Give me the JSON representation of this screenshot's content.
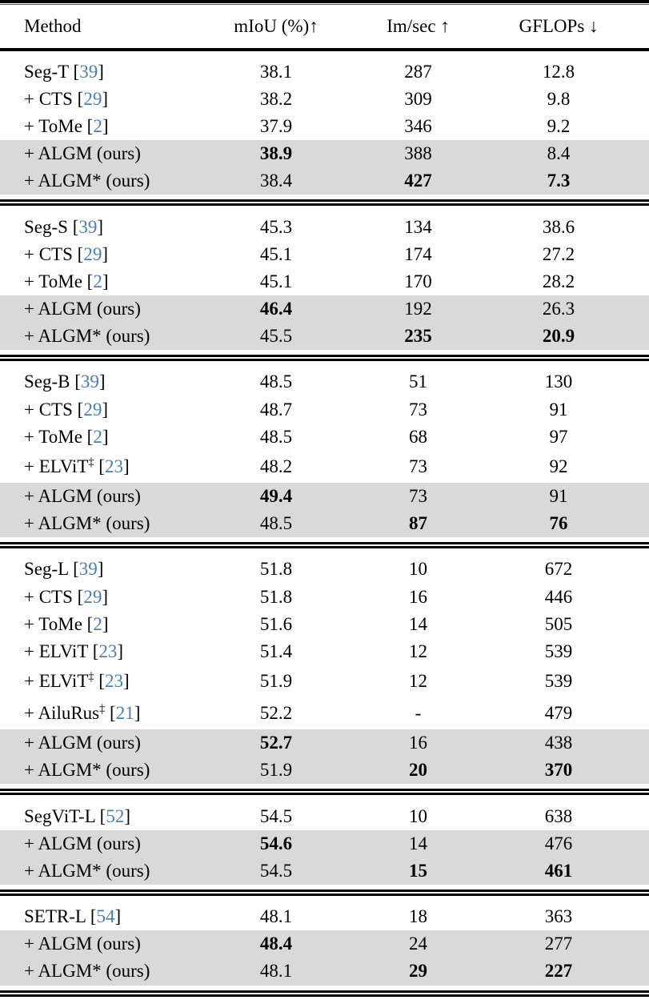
{
  "colors": {
    "citation_blue": "#4a7eb5",
    "row_shade": "#d9d9d9",
    "rule_black": "#000000"
  },
  "table": {
    "header": {
      "method": "Method",
      "miou": "mIoU (%)↑",
      "imsec": "Im/sec ↑",
      "gflops": "GFLOPs ↓"
    },
    "sections": [
      {
        "rows": [
          {
            "method": "Seg-T",
            "sup": "",
            "cite": "39",
            "shaded": false,
            "tall": false,
            "cells": [
              {
                "t": "38.1",
                "b": false
              },
              {
                "t": "287",
                "b": false
              },
              {
                "t": "12.8",
                "b": false
              }
            ]
          },
          {
            "method": "+ CTS",
            "sup": "",
            "cite": "29",
            "shaded": false,
            "tall": false,
            "cells": [
              {
                "t": "38.2",
                "b": false
              },
              {
                "t": "309",
                "b": false
              },
              {
                "t": "9.8",
                "b": false
              }
            ]
          },
          {
            "method": "+ ToMe",
            "sup": "",
            "cite": "2",
            "shaded": false,
            "tall": false,
            "cells": [
              {
                "t": "37.9",
                "b": false
              },
              {
                "t": "346",
                "b": false
              },
              {
                "t": "9.2",
                "b": false
              }
            ]
          },
          {
            "method": "+ ALGM (ours)",
            "sup": "",
            "cite": "",
            "shaded": true,
            "tall": false,
            "cells": [
              {
                "t": "38.9",
                "b": true
              },
              {
                "t": "388",
                "b": false
              },
              {
                "t": "8.4",
                "b": false
              }
            ]
          },
          {
            "method": "+ ALGM* (ours)",
            "sup": "",
            "cite": "",
            "shaded": true,
            "tall": false,
            "cells": [
              {
                "t": "38.4",
                "b": false
              },
              {
                "t": "427",
                "b": true
              },
              {
                "t": "7.3",
                "b": true
              }
            ]
          }
        ]
      },
      {
        "rows": [
          {
            "method": "Seg-S",
            "sup": "",
            "cite": "39",
            "shaded": false,
            "tall": false,
            "cells": [
              {
                "t": "45.3",
                "b": false
              },
              {
                "t": "134",
                "b": false
              },
              {
                "t": "38.6",
                "b": false
              }
            ]
          },
          {
            "method": "+ CTS",
            "sup": "",
            "cite": "29",
            "shaded": false,
            "tall": false,
            "cells": [
              {
                "t": "45.1",
                "b": false
              },
              {
                "t": "174",
                "b": false
              },
              {
                "t": "27.2",
                "b": false
              }
            ]
          },
          {
            "method": "+ ToMe",
            "sup": "",
            "cite": "2",
            "shaded": false,
            "tall": false,
            "cells": [
              {
                "t": "45.1",
                "b": false
              },
              {
                "t": "170",
                "b": false
              },
              {
                "t": "28.2",
                "b": false
              }
            ]
          },
          {
            "method": "+ ALGM (ours)",
            "sup": "",
            "cite": "",
            "shaded": true,
            "tall": false,
            "cells": [
              {
                "t": "46.4",
                "b": true
              },
              {
                "t": "192",
                "b": false
              },
              {
                "t": "26.3",
                "b": false
              }
            ]
          },
          {
            "method": "+ ALGM* (ours)",
            "sup": "",
            "cite": "",
            "shaded": true,
            "tall": false,
            "cells": [
              {
                "t": "45.5",
                "b": false
              },
              {
                "t": "235",
                "b": true
              },
              {
                "t": "20.9",
                "b": true
              }
            ]
          }
        ]
      },
      {
        "rows": [
          {
            "method": "Seg-B",
            "sup": "",
            "cite": "39",
            "shaded": false,
            "tall": false,
            "cells": [
              {
                "t": "48.5",
                "b": false
              },
              {
                "t": "51",
                "b": false
              },
              {
                "t": "130",
                "b": false
              }
            ]
          },
          {
            "method": "+ CTS",
            "sup": "",
            "cite": "29",
            "shaded": false,
            "tall": false,
            "cells": [
              {
                "t": "48.7",
                "b": false
              },
              {
                "t": "73",
                "b": false
              },
              {
                "t": "91",
                "b": false
              }
            ]
          },
          {
            "method": "+ ToMe",
            "sup": "",
            "cite": "2",
            "shaded": false,
            "tall": false,
            "cells": [
              {
                "t": "48.5",
                "b": false
              },
              {
                "t": "68",
                "b": false
              },
              {
                "t": "97",
                "b": false
              }
            ]
          },
          {
            "method": "+ ELViT",
            "sup": "‡",
            "cite": "23",
            "shaded": false,
            "tall": true,
            "cells": [
              {
                "t": "48.2",
                "b": false
              },
              {
                "t": "73",
                "b": false
              },
              {
                "t": "92",
                "b": false
              }
            ]
          },
          {
            "method": "+ ALGM (ours)",
            "sup": "",
            "cite": "",
            "shaded": true,
            "tall": false,
            "cells": [
              {
                "t": "49.4",
                "b": true
              },
              {
                "t": "73",
                "b": false
              },
              {
                "t": "91",
                "b": false
              }
            ]
          },
          {
            "method": "+ ALGM* (ours)",
            "sup": "",
            "cite": "",
            "shaded": true,
            "tall": false,
            "cells": [
              {
                "t": "48.5",
                "b": false
              },
              {
                "t": "87",
                "b": true
              },
              {
                "t": "76",
                "b": true
              }
            ]
          }
        ]
      },
      {
        "rows": [
          {
            "method": "Seg-L",
            "sup": "",
            "cite": "39",
            "shaded": false,
            "tall": false,
            "cells": [
              {
                "t": "51.8",
                "b": false
              },
              {
                "t": "10",
                "b": false
              },
              {
                "t": "672",
                "b": false
              }
            ]
          },
          {
            "method": "+ CTS",
            "sup": "",
            "cite": "29",
            "shaded": false,
            "tall": false,
            "cells": [
              {
                "t": "51.8",
                "b": false
              },
              {
                "t": "16",
                "b": false
              },
              {
                "t": "446",
                "b": false
              }
            ]
          },
          {
            "method": "+ ToMe",
            "sup": "",
            "cite": "2",
            "shaded": false,
            "tall": false,
            "cells": [
              {
                "t": "51.6",
                "b": false
              },
              {
                "t": "14",
                "b": false
              },
              {
                "t": "505",
                "b": false
              }
            ]
          },
          {
            "method": "+ ELViT",
            "sup": "",
            "cite": "23",
            "shaded": false,
            "tall": false,
            "cells": [
              {
                "t": "51.4",
                "b": false
              },
              {
                "t": "12",
                "b": false
              },
              {
                "t": "539",
                "b": false
              }
            ]
          },
          {
            "method": "+ ELViT",
            "sup": "‡",
            "cite": "23",
            "shaded": false,
            "tall": true,
            "cells": [
              {
                "t": "51.9",
                "b": false
              },
              {
                "t": "12",
                "b": false
              },
              {
                "t": "539",
                "b": false
              }
            ]
          },
          {
            "method": "+ AiluRus",
            "sup": "‡",
            "cite": "21",
            "shaded": false,
            "tall": true,
            "cells": [
              {
                "t": "52.2",
                "b": false
              },
              {
                "t": "-",
                "b": false
              },
              {
                "t": "479",
                "b": false
              }
            ]
          },
          {
            "method": "+ ALGM (ours)",
            "sup": "",
            "cite": "",
            "shaded": true,
            "tall": false,
            "cells": [
              {
                "t": "52.7",
                "b": true
              },
              {
                "t": "16",
                "b": false
              },
              {
                "t": "438",
                "b": false
              }
            ]
          },
          {
            "method": "+ ALGM* (ours)",
            "sup": "",
            "cite": "",
            "shaded": true,
            "tall": false,
            "cells": [
              {
                "t": "51.9",
                "b": false
              },
              {
                "t": "20",
                "b": true
              },
              {
                "t": "370",
                "b": true
              }
            ]
          }
        ]
      },
      {
        "rows": [
          {
            "method": "SegViT-L",
            "sup": "",
            "cite": "52",
            "shaded": false,
            "tall": false,
            "cells": [
              {
                "t": "54.5",
                "b": false
              },
              {
                "t": "10",
                "b": false
              },
              {
                "t": "638",
                "b": false
              }
            ]
          },
          {
            "method": "+ ALGM (ours)",
            "sup": "",
            "cite": "",
            "shaded": true,
            "tall": false,
            "cells": [
              {
                "t": "54.6",
                "b": true
              },
              {
                "t": "14",
                "b": false
              },
              {
                "t": "476",
                "b": false
              }
            ]
          },
          {
            "method": "+ ALGM* (ours)",
            "sup": "",
            "cite": "",
            "shaded": true,
            "tall": false,
            "cells": [
              {
                "t": "54.5",
                "b": false
              },
              {
                "t": "15",
                "b": true
              },
              {
                "t": "461",
                "b": true
              }
            ]
          }
        ]
      },
      {
        "rows": [
          {
            "method": "SETR-L",
            "sup": "",
            "cite": "54",
            "shaded": false,
            "tall": false,
            "cells": [
              {
                "t": "48.1",
                "b": false
              },
              {
                "t": "18",
                "b": false
              },
              {
                "t": "363",
                "b": false
              }
            ]
          },
          {
            "method": "+ ALGM (ours)",
            "sup": "",
            "cite": "",
            "shaded": true,
            "tall": false,
            "cells": [
              {
                "t": "48.4",
                "b": true
              },
              {
                "t": "24",
                "b": false
              },
              {
                "t": "277",
                "b": false
              }
            ]
          },
          {
            "method": "+ ALGM* (ours)",
            "sup": "",
            "cite": "",
            "shaded": true,
            "tall": false,
            "cells": [
              {
                "t": "48.1",
                "b": false
              },
              {
                "t": "29",
                "b": true
              },
              {
                "t": "227",
                "b": true
              }
            ]
          }
        ]
      }
    ]
  }
}
